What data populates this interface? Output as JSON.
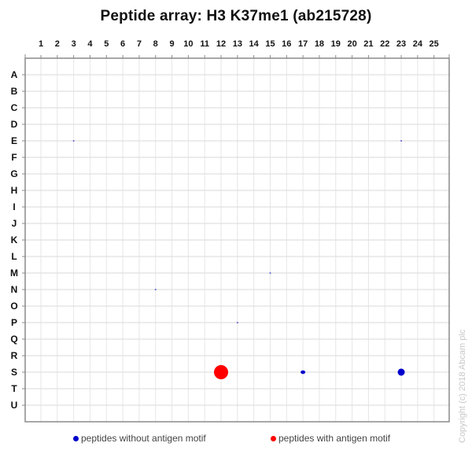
{
  "title": "Peptide array:  H3 K37me1  (ab215728)",
  "chart_data": {
    "type": "scatter",
    "title": "Peptide array:  H3 K37me1  (ab215728)",
    "xlabel": "",
    "ylabel": "",
    "x_ticks": [
      "1",
      "2",
      "3",
      "4",
      "5",
      "6",
      "7",
      "8",
      "9",
      "10",
      "11",
      "12",
      "13",
      "14",
      "15",
      "16",
      "17",
      "18",
      "19",
      "20",
      "21",
      "22",
      "23",
      "24",
      "25"
    ],
    "y_ticks": [
      "A",
      "B",
      "C",
      "D",
      "E",
      "F",
      "G",
      "H",
      "I",
      "J",
      "K",
      "L",
      "M",
      "N",
      "O",
      "P",
      "Q",
      "R",
      "S",
      "T",
      "U"
    ],
    "grid": true,
    "legend_position": "bottom",
    "series": [
      {
        "name": "peptides without antigen motif",
        "color": "#0000cc",
        "points": [
          {
            "row": "E",
            "col": 3,
            "size": 0.6
          },
          {
            "row": "E",
            "col": 23,
            "size": 0.6
          },
          {
            "row": "M",
            "col": 15,
            "size": 0.8
          },
          {
            "row": "N",
            "col": 8,
            "size": 0.8
          },
          {
            "row": "P",
            "col": 13,
            "size": 0.6
          },
          {
            "row": "S",
            "col": 17,
            "size": 3
          },
          {
            "row": "S",
            "col": 23,
            "size": 4.5
          }
        ]
      },
      {
        "name": "peptides with antigen motif",
        "color": "#ff0000",
        "points": [
          {
            "row": "S",
            "col": 12,
            "size": 9
          }
        ]
      }
    ]
  },
  "legend": {
    "without": {
      "label": "peptides without antigen motif",
      "color": "#0000cc"
    },
    "with": {
      "label": "peptides with antigen motif",
      "color": "#ff0000"
    }
  },
  "copyright": "Copyright (c) 2018 Abcam plc"
}
